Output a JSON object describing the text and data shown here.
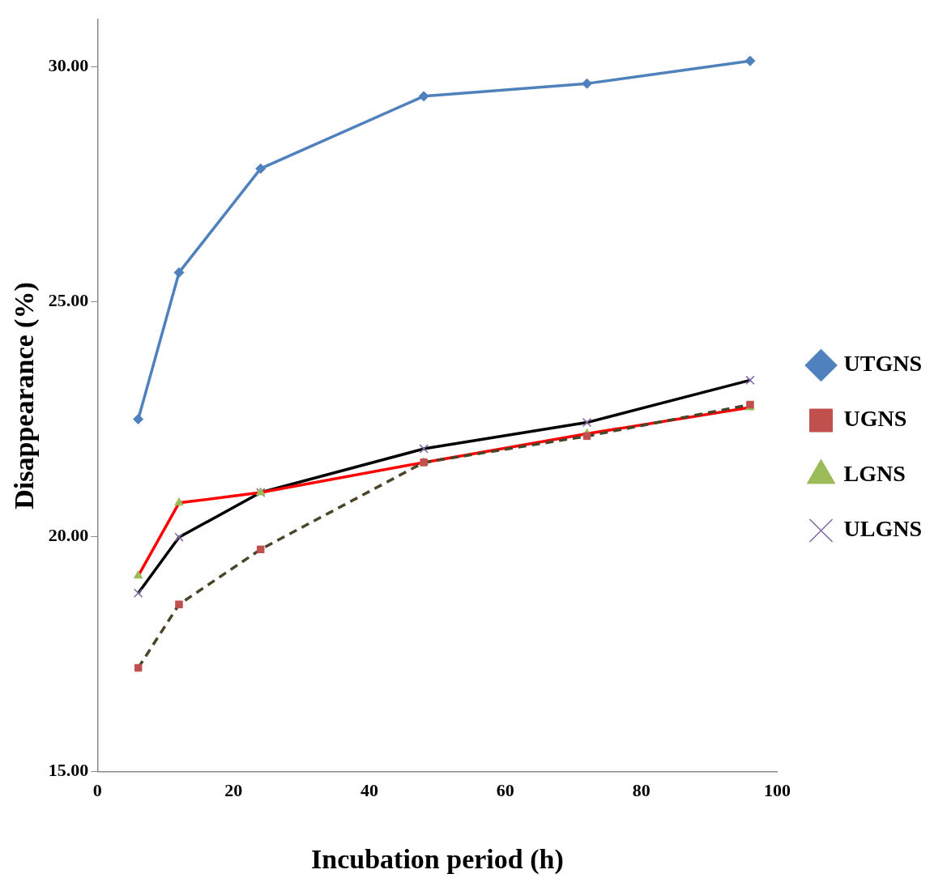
{
  "chart_data": {
    "type": "line",
    "xlabel": "Incubation period (h)",
    "ylabel": "Disappearance (%)",
    "x": [
      6,
      12,
      24,
      48,
      72,
      96
    ],
    "xlim": [
      0,
      100
    ],
    "xticks": [
      0,
      20,
      40,
      60,
      80,
      100
    ],
    "ylim": [
      15,
      31
    ],
    "yticks": [
      {
        "value": 15,
        "label": "15.00"
      },
      {
        "value": 20,
        "label": "20.00"
      },
      {
        "value": 25,
        "label": "25.00"
      },
      {
        "value": 30,
        "label": "30.00"
      }
    ],
    "grid": false,
    "legend": "right",
    "series": [
      {
        "name": "UTGNS",
        "color": "#4f81bd",
        "marker": "diamond",
        "line_style": "solid",
        "values": [
          22.5,
          25.62,
          27.83,
          29.37,
          29.64,
          30.12
        ]
      },
      {
        "name": "UGNS",
        "color": "#4a452a",
        "colors": [
          "#c0504d",
          "#c0504d",
          "#c0504d",
          "#c0504d",
          "#c0504d",
          "#c0504d"
        ],
        "marker": "square",
        "line_style": "dashed",
        "values": [
          17.21,
          18.56,
          19.73,
          21.58,
          22.14,
          22.81
        ]
      },
      {
        "name": "LGNS",
        "color": "#ff0000",
        "colors": [
          "#9bbb59",
          "#9bbb59",
          "#9bbb59",
          "#9bbb59",
          "#9bbb59",
          "#9bbb59"
        ],
        "marker": "triangle",
        "line_style": "solid",
        "values": [
          19.17,
          20.72,
          20.94,
          21.58,
          22.19,
          22.75
        ]
      },
      {
        "name": "ULGNS",
        "color": "#000000",
        "colors": [
          "#8064a2",
          "#8064a2",
          "#8064a2",
          "#8064a2",
          "#8064a2",
          "#8064a2"
        ],
        "marker": "cross",
        "line_style": "solid",
        "values": [
          18.8,
          19.99,
          20.94,
          21.87,
          22.43,
          23.33
        ]
      }
    ]
  }
}
